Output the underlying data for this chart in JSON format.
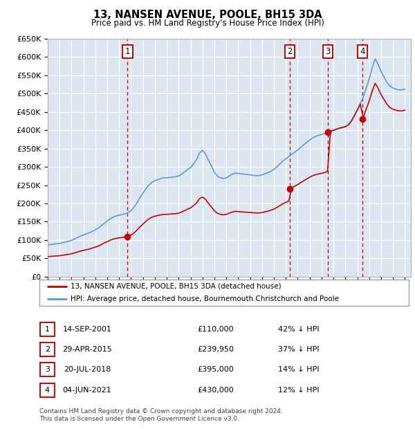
{
  "title": "13, NANSEN AVENUE, POOLE, BH15 3DA",
  "subtitle": "Price paid vs. HM Land Registry's House Price Index (HPI)",
  "background_color": "#dce6f1",
  "ylim": [
    0,
    650000
  ],
  "yticks": [
    0,
    50000,
    100000,
    150000,
    200000,
    250000,
    300000,
    350000,
    400000,
    450000,
    500000,
    550000,
    600000,
    650000
  ],
  "sale_years": [
    2001.708,
    2015.329,
    2018.549,
    2021.422
  ],
  "sale_prices": [
    110000,
    239950,
    395000,
    430000
  ],
  "sale_labels": [
    "1",
    "2",
    "3",
    "4"
  ],
  "sale_dates_display": [
    "14-SEP-2001",
    "29-APR-2015",
    "20-JUL-2018",
    "04-JUN-2021"
  ],
  "sale_prices_display": [
    "£110,000",
    "£239,950",
    "£395,000",
    "£430,000"
  ],
  "sale_pct_display": [
    "42% ↓ HPI",
    "37% ↓ HPI",
    "14% ↓ HPI",
    "12% ↓ HPI"
  ],
  "legend_line1": "13, NANSEN AVENUE, POOLE, BH15 3DA (detached house)",
  "legend_line2": "HPI: Average price, detached house, Bournemouth Christchurch and Poole",
  "footer1": "Contains HM Land Registry data © Crown copyright and database right 2024.",
  "footer2": "This data is licensed under the Open Government Licence v3.0.",
  "line_color_red": "#cc0000",
  "line_color_blue": "#5b9bd5",
  "dashed_color": "#cc0000",
  "box_color": "#cc0000",
  "grid_color": "#ffffff",
  "hpi_years": [
    1995.0,
    1995.25,
    1995.5,
    1995.75,
    1996.0,
    1996.25,
    1996.5,
    1996.75,
    1997.0,
    1997.25,
    1997.5,
    1997.75,
    1998.0,
    1998.25,
    1998.5,
    1998.75,
    1999.0,
    1999.25,
    1999.5,
    1999.75,
    2000.0,
    2000.25,
    2000.5,
    2000.75,
    2001.0,
    2001.25,
    2001.5,
    2001.75,
    2002.0,
    2002.25,
    2002.5,
    2002.75,
    2003.0,
    2003.25,
    2003.5,
    2003.75,
    2004.0,
    2004.25,
    2004.5,
    2004.75,
    2005.0,
    2005.25,
    2005.5,
    2005.75,
    2006.0,
    2006.25,
    2006.5,
    2006.75,
    2007.0,
    2007.25,
    2007.5,
    2007.75,
    2008.0,
    2008.25,
    2008.5,
    2008.75,
    2009.0,
    2009.25,
    2009.5,
    2009.75,
    2010.0,
    2010.25,
    2010.5,
    2010.75,
    2011.0,
    2011.25,
    2011.5,
    2011.75,
    2012.0,
    2012.25,
    2012.5,
    2012.75,
    2013.0,
    2013.25,
    2013.5,
    2013.75,
    2014.0,
    2014.25,
    2014.5,
    2014.75,
    2015.0,
    2015.25,
    2015.5,
    2015.75,
    2016.0,
    2016.25,
    2016.5,
    2016.75,
    2017.0,
    2017.25,
    2017.5,
    2017.75,
    2018.0,
    2018.25,
    2018.5,
    2018.75,
    2019.0,
    2019.25,
    2019.5,
    2019.75,
    2020.0,
    2020.25,
    2020.5,
    2020.75,
    2021.0,
    2021.25,
    2021.5,
    2021.75,
    2022.0,
    2022.25,
    2022.5,
    2022.75,
    2023.0,
    2023.25,
    2023.5,
    2023.75,
    2024.0,
    2024.25,
    2024.5,
    2024.75,
    2025.0
  ],
  "hpi_values": [
    87000,
    88000,
    89000,
    90000,
    91000,
    93000,
    95000,
    97000,
    99000,
    103000,
    107000,
    111000,
    114000,
    117000,
    120000,
    124000,
    128000,
    133000,
    139000,
    146000,
    152000,
    158000,
    163000,
    166000,
    168000,
    170000,
    172000,
    175000,
    180000,
    190000,
    202000,
    216000,
    228000,
    240000,
    250000,
    258000,
    262000,
    265000,
    268000,
    270000,
    270000,
    271000,
    272000,
    273000,
    275000,
    280000,
    286000,
    293000,
    298000,
    308000,
    320000,
    338000,
    345000,
    335000,
    318000,
    302000,
    285000,
    275000,
    270000,
    268000,
    270000,
    275000,
    280000,
    283000,
    282000,
    281000,
    280000,
    279000,
    278000,
    277000,
    276000,
    276000,
    278000,
    281000,
    284000,
    288000,
    293000,
    300000,
    308000,
    316000,
    322000,
    328000,
    334000,
    340000,
    346000,
    353000,
    360000,
    367000,
    373000,
    379000,
    383000,
    386000,
    388000,
    391000,
    395000,
    398000,
    400000,
    403000,
    406000,
    408000,
    410000,
    415000,
    425000,
    440000,
    455000,
    472000,
    490000,
    515000,
    540000,
    570000,
    595000,
    580000,
    560000,
    545000,
    530000,
    520000,
    515000,
    512000,
    510000,
    510000,
    512000
  ]
}
